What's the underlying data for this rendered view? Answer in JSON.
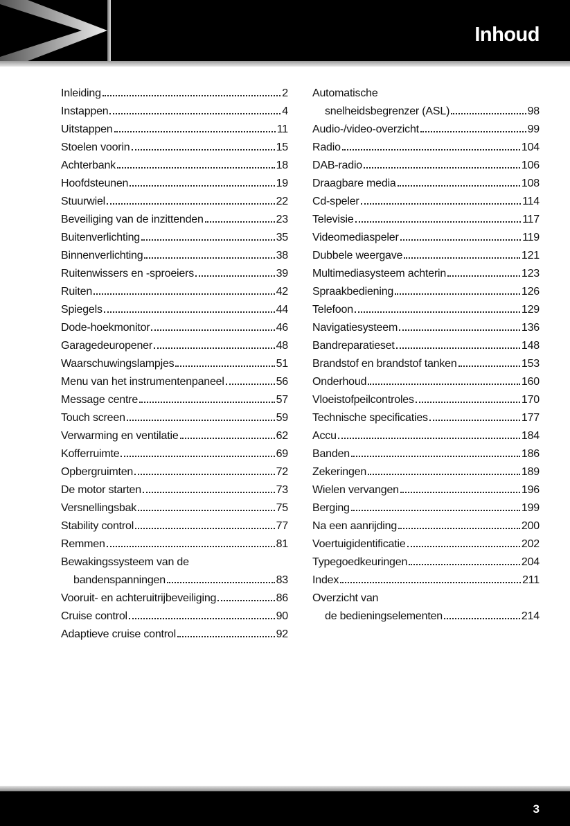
{
  "header": {
    "title": "Inhoud"
  },
  "columns": [
    {
      "entries": [
        {
          "lines": [
            "Inleiding"
          ],
          "page": 2
        },
        {
          "lines": [
            "Instappen"
          ],
          "page": 4
        },
        {
          "lines": [
            "Uitstappen"
          ],
          "page": 11
        },
        {
          "lines": [
            "Stoelen voorin"
          ],
          "page": 15
        },
        {
          "lines": [
            "Achterbank"
          ],
          "page": 18
        },
        {
          "lines": [
            "Hoofdsteunen"
          ],
          "page": 19
        },
        {
          "lines": [
            "Stuurwiel"
          ],
          "page": 22
        },
        {
          "lines": [
            "Beveiliging van de inzittenden"
          ],
          "page": 23
        },
        {
          "lines": [
            "Buitenverlichting"
          ],
          "page": 35
        },
        {
          "lines": [
            "Binnenverlichting"
          ],
          "page": 38
        },
        {
          "lines": [
            "Ruitenwissers en -sproeiers"
          ],
          "page": 39
        },
        {
          "lines": [
            "Ruiten"
          ],
          "page": 42
        },
        {
          "lines": [
            "Spiegels"
          ],
          "page": 44
        },
        {
          "lines": [
            "Dode-hoekmonitor"
          ],
          "page": 46
        },
        {
          "lines": [
            "Garagedeuropener"
          ],
          "page": 48
        },
        {
          "lines": [
            "Waarschuwingslampjes"
          ],
          "page": 51
        },
        {
          "lines": [
            "Menu van het instrumentenpaneel"
          ],
          "page": 56
        },
        {
          "lines": [
            "Message centre"
          ],
          "page": 57
        },
        {
          "lines": [
            "Touch screen"
          ],
          "page": 59
        },
        {
          "lines": [
            "Verwarming en ventilatie"
          ],
          "page": 62
        },
        {
          "lines": [
            "Kofferruimte"
          ],
          "page": 69
        },
        {
          "lines": [
            "Opbergruimten"
          ],
          "page": 72
        },
        {
          "lines": [
            "De motor starten"
          ],
          "page": 73
        },
        {
          "lines": [
            "Versnellingsbak"
          ],
          "page": 75
        },
        {
          "lines": [
            "Stability control"
          ],
          "page": 77
        },
        {
          "lines": [
            "Remmen"
          ],
          "page": 81
        },
        {
          "lines": [
            "Bewakingssysteem van de",
            "bandenspanningen"
          ],
          "page": 83
        },
        {
          "lines": [
            "Vooruit- en achteruitrijbeveiliging"
          ],
          "page": 86
        },
        {
          "lines": [
            "Cruise control"
          ],
          "page": 90
        },
        {
          "lines": [
            "Adaptieve cruise control"
          ],
          "page": 92
        }
      ]
    },
    {
      "entries": [
        {
          "lines": [
            "Automatische",
            "snelheidsbegrenzer (ASL)"
          ],
          "page": 98
        },
        {
          "lines": [
            "Audio-/video-overzicht"
          ],
          "page": 99
        },
        {
          "lines": [
            "Radio"
          ],
          "page": 104
        },
        {
          "lines": [
            "DAB-radio"
          ],
          "page": 106
        },
        {
          "lines": [
            "Draagbare media"
          ],
          "page": 108
        },
        {
          "lines": [
            "Cd-speler"
          ],
          "page": 114
        },
        {
          "lines": [
            "Televisie"
          ],
          "page": 117
        },
        {
          "lines": [
            "Videomediaspeler"
          ],
          "page": 119
        },
        {
          "lines": [
            "Dubbele weergave"
          ],
          "page": 121
        },
        {
          "lines": [
            "Multimediasysteem achterin"
          ],
          "page": 123
        },
        {
          "lines": [
            "Spraakbediening"
          ],
          "page": 126
        },
        {
          "lines": [
            "Telefoon"
          ],
          "page": 129
        },
        {
          "lines": [
            "Navigatiesysteem"
          ],
          "page": 136
        },
        {
          "lines": [
            "Bandreparatieset"
          ],
          "page": 148
        },
        {
          "lines": [
            "Brandstof en brandstof tanken"
          ],
          "page": 153
        },
        {
          "lines": [
            "Onderhoud"
          ],
          "page": 160
        },
        {
          "lines": [
            "Vloeistofpeilcontroles"
          ],
          "page": 170
        },
        {
          "lines": [
            "Technische specificaties"
          ],
          "page": 177
        },
        {
          "lines": [
            "Accu"
          ],
          "page": 184
        },
        {
          "lines": [
            "Banden"
          ],
          "page": 186
        },
        {
          "lines": [
            "Zekeringen"
          ],
          "page": 189
        },
        {
          "lines": [
            "Wielen vervangen"
          ],
          "page": 196
        },
        {
          "lines": [
            "Berging"
          ],
          "page": 199
        },
        {
          "lines": [
            "Na een aanrijding"
          ],
          "page": 200
        },
        {
          "lines": [
            "Voertuigidentificatie"
          ],
          "page": 202
        },
        {
          "lines": [
            "Typegoedkeuringen"
          ],
          "page": 204
        },
        {
          "lines": [
            "Index"
          ],
          "page": 211
        },
        {
          "lines": [
            "Overzicht van",
            "de bedieningselementen"
          ],
          "page": 214
        }
      ]
    }
  ],
  "footer": {
    "page_number": 3
  }
}
